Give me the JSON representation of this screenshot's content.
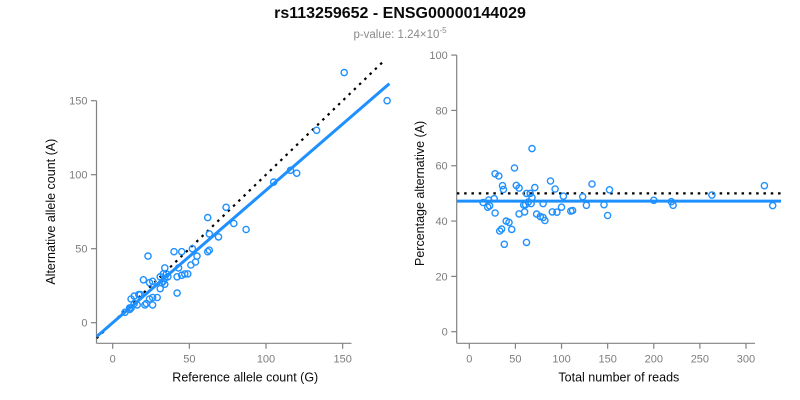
{
  "header": {
    "title": "rs113259652 - ENSG00000144029",
    "subtitle_prefix": "p-value: 1.24×10",
    "subtitle_exponent": "-5"
  },
  "colors": {
    "point_blue": "#1E90FF",
    "line_blue": "#1E90FF",
    "line_black": "#000000",
    "axis_gray": "#828282",
    "tick_text_gray": "#7d7d7d",
    "title_black": "#0a0a0a",
    "subtitle_gray": "#8a8a8a"
  },
  "chart_data": [
    {
      "type": "scatter",
      "panel": "left",
      "xlabel": "Reference allele count (G)",
      "ylabel": "Alternative allele count (A)",
      "xticks": [
        0,
        50,
        100,
        150
      ],
      "yticks": [
        0,
        50,
        100,
        150
      ],
      "xlim": [
        -10.5,
        180.5
      ],
      "ylim": [
        -14,
        178
      ],
      "grid": false,
      "marker": "open-circle",
      "points": [
        [
          23,
          45
        ],
        [
          20,
          29
        ],
        [
          12,
          16
        ],
        [
          14,
          18
        ],
        [
          40,
          48
        ],
        [
          17,
          19
        ],
        [
          62,
          71
        ],
        [
          24,
          27
        ],
        [
          26,
          28
        ],
        [
          34,
          37
        ],
        [
          151,
          169
        ],
        [
          45,
          48
        ],
        [
          74,
          78
        ],
        [
          18,
          19
        ],
        [
          31,
          31
        ],
        [
          33,
          33
        ],
        [
          35,
          33
        ],
        [
          52,
          50
        ],
        [
          63,
          60
        ],
        [
          133,
          130
        ],
        [
          14,
          13
        ],
        [
          105,
          95
        ],
        [
          116,
          103
        ],
        [
          120,
          101
        ],
        [
          79,
          67
        ],
        [
          179,
          150
        ],
        [
          11,
          9
        ],
        [
          11,
          10
        ],
        [
          8,
          7
        ],
        [
          12,
          10
        ],
        [
          16,
          12
        ],
        [
          32,
          27
        ],
        [
          33,
          28
        ],
        [
          34,
          30
        ],
        [
          36,
          31
        ],
        [
          43,
          37
        ],
        [
          51,
          39
        ],
        [
          54,
          41
        ],
        [
          55,
          45
        ],
        [
          62,
          48
        ],
        [
          63,
          49
        ],
        [
          31,
          23
        ],
        [
          34,
          26
        ],
        [
          42,
          31
        ],
        [
          45,
          32
        ],
        [
          47,
          33
        ],
        [
          49,
          33
        ],
        [
          69,
          58
        ],
        [
          24,
          16
        ],
        [
          26,
          17
        ],
        [
          29,
          17
        ],
        [
          22,
          13
        ],
        [
          21,
          12
        ],
        [
          42,
          20
        ],
        [
          26,
          12
        ],
        [
          87,
          63
        ]
      ],
      "lines": [
        {
          "name": "identity-line",
          "kind": "abline",
          "slope": 1,
          "intercept": 0,
          "style": "dotted",
          "color": "#000000",
          "width": 2.2
        },
        {
          "name": "regression-line",
          "kind": "abline",
          "slope": 0.895,
          "intercept": 0,
          "style": "solid",
          "color": "#1E90FF",
          "width": 3
        }
      ]
    },
    {
      "type": "scatter",
      "panel": "right",
      "xlabel": "Total number of reads",
      "ylabel": "Percentage alternative (A)",
      "xticks": [
        0,
        50,
        100,
        150,
        200,
        250,
        300
      ],
      "yticks": [
        0,
        20,
        40,
        60,
        80,
        100
      ],
      "xlim": [
        -13.5,
        345
      ],
      "ylim": [
        -4,
        104
      ],
      "grid": false,
      "marker": "open-circle",
      "points": [
        [
          68,
          66.2
        ],
        [
          49,
          59.2
        ],
        [
          28,
          57.1
        ],
        [
          32,
          56.3
        ],
        [
          88,
          54.5
        ],
        [
          36,
          52.8
        ],
        [
          133,
          53.4
        ],
        [
          51,
          52.9
        ],
        [
          54,
          51.9
        ],
        [
          71,
          52.1
        ],
        [
          320,
          52.8
        ],
        [
          93,
          51.6
        ],
        [
          152,
          51.3
        ],
        [
          37,
          51.4
        ],
        [
          62,
          50
        ],
        [
          66,
          50
        ],
        [
          68,
          48.5
        ],
        [
          102,
          49
        ],
        [
          123,
          48.8
        ],
        [
          263,
          49.4
        ],
        [
          27,
          48.1
        ],
        [
          200,
          47.5
        ],
        [
          219,
          47
        ],
        [
          221,
          45.7
        ],
        [
          146,
          45.9
        ],
        [
          329,
          45.6
        ],
        [
          20,
          45
        ],
        [
          21,
          47.6
        ],
        [
          15,
          46.7
        ],
        [
          22,
          45.5
        ],
        [
          28,
          42.9
        ],
        [
          59,
          45.8
        ],
        [
          61,
          45.9
        ],
        [
          64,
          46.9
        ],
        [
          67,
          46.3
        ],
        [
          80,
          46.3
        ],
        [
          90,
          43.3
        ],
        [
          95,
          43.2
        ],
        [
          100,
          45
        ],
        [
          110,
          43.6
        ],
        [
          112,
          43.8
        ],
        [
          54,
          42.6
        ],
        [
          60,
          43.3
        ],
        [
          73,
          42.5
        ],
        [
          77,
          41.6
        ],
        [
          80,
          41.3
        ],
        [
          82,
          40.2
        ],
        [
          127,
          45.7
        ],
        [
          40,
          40
        ],
        [
          43,
          39.5
        ],
        [
          46,
          37
        ],
        [
          35,
          37.1
        ],
        [
          33,
          36.4
        ],
        [
          62,
          32.3
        ],
        [
          38,
          31.6
        ],
        [
          150,
          42
        ]
      ],
      "lines": [
        {
          "name": "expected-50pct-line",
          "kind": "hline",
          "y": 50,
          "style": "dotted",
          "color": "#000000",
          "width": 2.2
        },
        {
          "name": "mean-pct-line",
          "kind": "hline",
          "y": 47.2,
          "style": "solid",
          "color": "#1E90FF",
          "width": 3
        }
      ]
    }
  ]
}
